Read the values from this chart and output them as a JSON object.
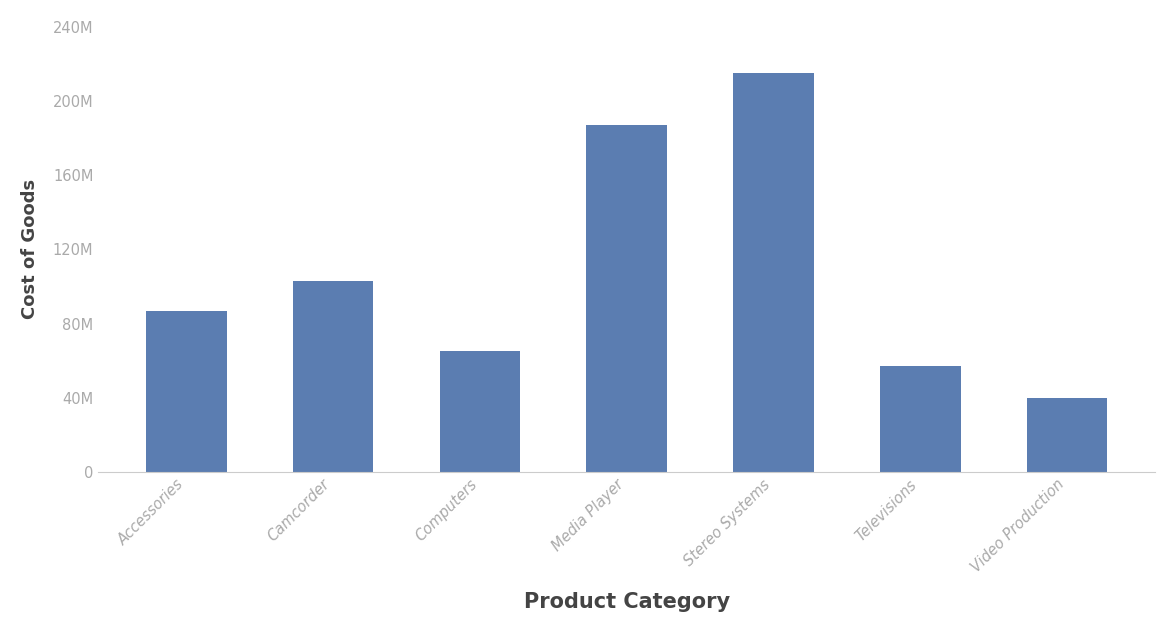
{
  "categories": [
    "Accessories",
    "Camcorder",
    "Computers",
    "Media Player",
    "Stereo Systems",
    "Televisions",
    "Video Production"
  ],
  "values": [
    87000000,
    103000000,
    65000000,
    187000000,
    215000000,
    57000000,
    40000000
  ],
  "bar_color": "#5b7db1",
  "xlabel": "Product Category",
  "ylabel": "Cost of Goods",
  "ylim": [
    0,
    240000000
  ],
  "yticks": [
    0,
    40000000,
    80000000,
    120000000,
    160000000,
    200000000,
    240000000
  ],
  "ytick_labels": [
    "0",
    "40M",
    "80M",
    "120M",
    "160M",
    "200M",
    "240M"
  ],
  "xlabel_fontsize": 15,
  "ylabel_fontsize": 13,
  "xtick_fontsize": 10.5,
  "ytick_fontsize": 10.5,
  "xtick_rotation": 45,
  "background_color": "#ffffff",
  "bar_width": 0.55
}
